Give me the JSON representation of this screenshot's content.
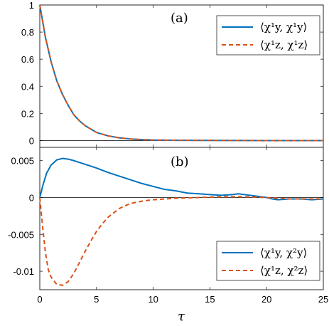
{
  "chart_data": [
    {
      "type": "line",
      "panel_label": "(a)",
      "xlim": [
        0,
        25
      ],
      "ylim": [
        -0.05,
        1
      ],
      "x_ticks": [
        0,
        5,
        10,
        15,
        20,
        25
      ],
      "y_ticks": [
        0,
        0.2,
        0.4,
        0.6,
        0.8,
        1
      ],
      "y_tick_labels": [
        "0",
        "0.2",
        "0.4",
        "0.6",
        "0.8",
        "1"
      ],
      "zero_line": true,
      "legend": "top-right",
      "series": [
        {
          "name": "⟨χ¹y, χ¹y⟩",
          "color": "#0072BD",
          "style": "solid",
          "x": [
            0,
            0.5,
            1,
            1.5,
            2,
            2.5,
            3,
            3.5,
            4,
            4.5,
            5,
            6,
            7,
            8,
            9,
            10,
            12,
            15,
            20,
            25
          ],
          "y": [
            1.0,
            0.76,
            0.58,
            0.44,
            0.34,
            0.26,
            0.19,
            0.145,
            0.11,
            0.085,
            0.06,
            0.035,
            0.02,
            0.012,
            0.007,
            0.004,
            0.002,
            0.001,
            0.0,
            0.0
          ]
        },
        {
          "name": "⟨χ¹z, χ¹z⟩",
          "color": "#D95319",
          "style": "dashed",
          "x": [
            0,
            0.5,
            1,
            1.5,
            2,
            2.5,
            3,
            3.5,
            4,
            4.5,
            5,
            6,
            7,
            8,
            9,
            10,
            12,
            15,
            20,
            25
          ],
          "y": [
            1.0,
            0.76,
            0.58,
            0.44,
            0.34,
            0.26,
            0.19,
            0.145,
            0.11,
            0.085,
            0.06,
            0.035,
            0.02,
            0.012,
            0.007,
            0.004,
            0.002,
            0.001,
            0.0,
            0.0
          ]
        }
      ]
    },
    {
      "type": "line",
      "panel_label": "(b)",
      "xlabel": "τ",
      "xlim": [
        0,
        25
      ],
      "ylim": [
        -0.0125,
        0.0068
      ],
      "x_ticks": [
        0,
        5,
        10,
        15,
        20,
        25
      ],
      "x_tick_labels": [
        "0",
        "5",
        "10",
        "15",
        "20",
        "25"
      ],
      "y_ticks": [
        -0.01,
        -0.005,
        0,
        0.005
      ],
      "y_tick_labels": [
        "-0.01",
        "-0.005",
        "0",
        "0.005"
      ],
      "zero_line": true,
      "legend": "bottom-right",
      "series": [
        {
          "name": "⟨χ¹y, χ²y⟩",
          "color": "#0072BD",
          "style": "solid",
          "x": [
            0,
            0.3,
            0.6,
            1,
            1.5,
            2,
            2.5,
            3,
            4,
            5,
            6,
            7,
            8,
            9,
            10,
            11,
            12,
            13,
            14,
            15,
            16,
            17,
            17.5,
            18,
            19,
            20,
            20.5,
            21,
            22,
            23,
            24,
            25
          ],
          "y": [
            0,
            0.0018,
            0.0033,
            0.0044,
            0.0051,
            0.0053,
            0.0052,
            0.005,
            0.0045,
            0.004,
            0.0034,
            0.0029,
            0.0024,
            0.0019,
            0.0015,
            0.0011,
            0.0009,
            0.0006,
            0.0005,
            0.0004,
            0.0003,
            0.0004,
            0.0005,
            0.0004,
            0.0002,
            0.0,
            -0.0002,
            -0.0003,
            -0.0002,
            -0.0002,
            -0.0003,
            -0.0002
          ]
        },
        {
          "name": "⟨χ¹z, χ²z⟩",
          "color": "#D95319",
          "style": "dashed",
          "x": [
            0,
            0.25,
            0.5,
            0.75,
            1,
            1.5,
            2,
            2.5,
            3,
            3.5,
            4,
            4.5,
            5,
            5.5,
            6,
            7,
            8,
            9,
            10,
            11,
            12,
            14,
            16,
            18,
            20,
            21,
            22,
            23,
            24,
            25
          ],
          "y": [
            0,
            -0.004,
            -0.0075,
            -0.0098,
            -0.0108,
            -0.0118,
            -0.0119,
            -0.0114,
            -0.0103,
            -0.0088,
            -0.0073,
            -0.0059,
            -0.0046,
            -0.0036,
            -0.0027,
            -0.0015,
            -0.0008,
            -0.0005,
            -0.0003,
            -0.0002,
            -0.0001,
            0,
            0.0001,
            0.0001,
            0.0,
            -0.0001,
            -0.0002,
            -0.0002,
            -0.0002,
            -0.0002
          ]
        }
      ]
    }
  ]
}
